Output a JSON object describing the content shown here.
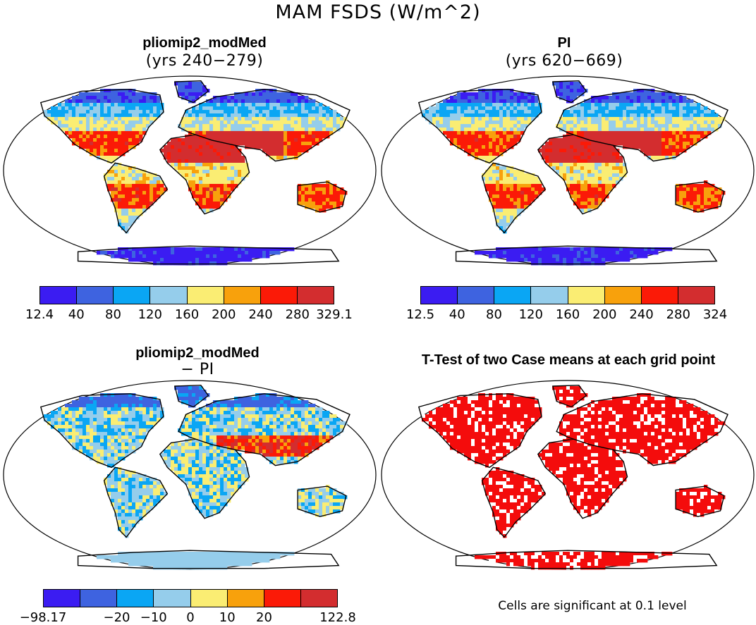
{
  "chart_data": {
    "type": "heatmap",
    "title": "MAM FSDS (W/m^2)",
    "panels": [
      {
        "id": "top-left",
        "title": "pliomip2_modMed",
        "subtitle": "(yrs 240−279)",
        "variant": "absolute",
        "colorbar": {
          "colors": [
            "#3b1cf2",
            "#3e63e0",
            "#0aa6f4",
            "#95cdeb",
            "#faed73",
            "#f8a10c",
            "#fb1a07",
            "#d32d2f"
          ],
          "labels": [
            "12.4",
            "40",
            "80",
            "120",
            "160",
            "200",
            "240",
            "280",
            "329.1"
          ]
        }
      },
      {
        "id": "top-right",
        "title": "PI",
        "subtitle": "(yrs 620−669)",
        "variant": "absolute",
        "colorbar": {
          "colors": [
            "#3b1cf2",
            "#3e63e0",
            "#0aa6f4",
            "#95cdeb",
            "#faed73",
            "#f8a10c",
            "#fb1a07",
            "#d32d2f"
          ],
          "labels": [
            "12.5",
            "40",
            "80",
            "120",
            "160",
            "200",
            "240",
            "280",
            "324"
          ]
        }
      },
      {
        "id": "bottom-left",
        "title": "pliomip2_modMed",
        "subtitle": "− PI",
        "variant": "difference",
        "colorbar": {
          "colors": [
            "#3b1cf2",
            "#3e63e0",
            "#0aa6f4",
            "#95cdeb",
            "#faed73",
            "#f8a10c",
            "#fb1a07",
            "#d32d2f"
          ],
          "labels": [
            "−98.17",
            "",
            "−20",
            "−10",
            "0",
            "10",
            "20",
            "",
            "122.8"
          ]
        }
      },
      {
        "id": "bottom-right",
        "title": "T-Test of two Case means at each grid point",
        "subtitle": "",
        "variant": "significance",
        "footnote": "Cells are significant at 0.1 level"
      }
    ]
  }
}
